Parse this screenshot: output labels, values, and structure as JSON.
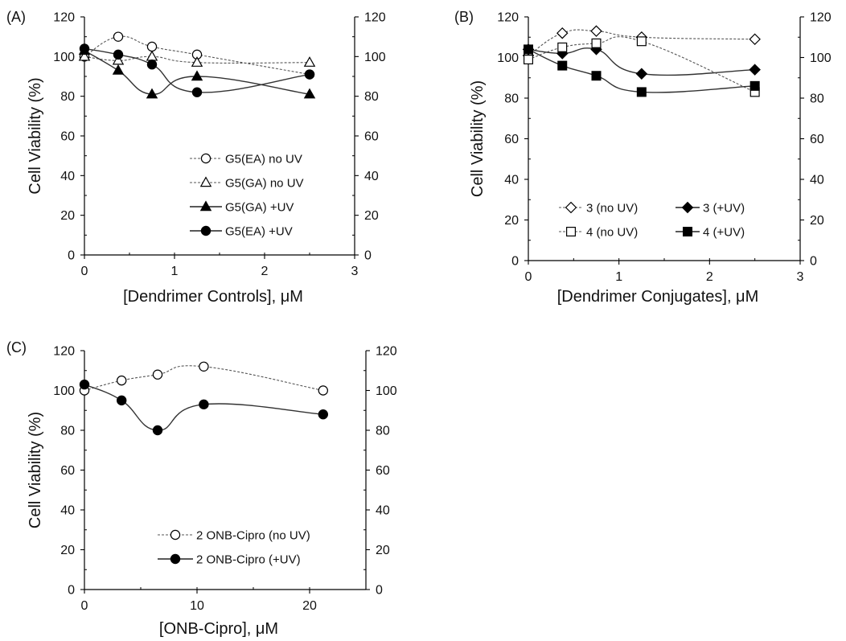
{
  "chart_data": [
    {
      "panel": "(A)",
      "type": "line",
      "xlabel": "[Dendrimer Controls], μM",
      "ylabel": "Cell Viability (%)",
      "xlim": [
        0,
        3
      ],
      "ylim": [
        0,
        120
      ],
      "xticks": [
        "0",
        "1",
        "2",
        "3"
      ],
      "yticks": [
        "0",
        "20",
        "40",
        "60",
        "80",
        "100",
        "120"
      ],
      "y2ticks": [
        "0",
        "20",
        "40",
        "60",
        "80",
        "100",
        "120"
      ],
      "legend_position": "center",
      "series": [
        {
          "name": "G5(EA) no UV",
          "marker": "circle",
          "fill": "open",
          "line": "dashed",
          "x": [
            0,
            0.375,
            0.75,
            1.25,
            2.5
          ],
          "y": [
            100,
            110,
            105,
            101,
            91
          ]
        },
        {
          "name": "G5(GA) no UV",
          "marker": "triangle",
          "fill": "open",
          "line": "dashed",
          "x": [
            0,
            0.375,
            0.75,
            1.25,
            2.5
          ],
          "y": [
            100,
            98,
            100,
            97,
            97
          ]
        },
        {
          "name": "G5(GA) +UV",
          "marker": "triangle",
          "fill": "filled",
          "line": "solid",
          "x": [
            0,
            0.375,
            0.75,
            1.25,
            2.5
          ],
          "y": [
            103,
            93,
            81,
            90,
            81
          ]
        },
        {
          "name": "G5(EA) +UV",
          "marker": "circle",
          "fill": "filled",
          "line": "solid",
          "x": [
            0,
            0.375,
            0.75,
            1.25,
            2.5
          ],
          "y": [
            104,
            101,
            96,
            82,
            91
          ]
        }
      ]
    },
    {
      "panel": "(B)",
      "type": "line",
      "xlabel": "[Dendrimer Conjugates], μM",
      "ylabel": "Cell Viability (%)",
      "xlim": [
        0,
        3
      ],
      "ylim": [
        0,
        120
      ],
      "xticks": [
        "0",
        "1",
        "2",
        "3"
      ],
      "yticks": [
        "0",
        "20",
        "40",
        "60",
        "80",
        "100",
        "120"
      ],
      "y2ticks": [
        "0",
        "20",
        "40",
        "60",
        "80",
        "100",
        "120"
      ],
      "legend_position": "bottom",
      "series": [
        {
          "name": "3 (no UV)",
          "marker": "diamond",
          "fill": "open",
          "line": "dashed",
          "x": [
            0,
            0.375,
            0.75,
            1.25,
            2.5
          ],
          "y": [
            101,
            112,
            113,
            110,
            109
          ]
        },
        {
          "name": "3 (+UV)",
          "marker": "diamond",
          "fill": "filled",
          "line": "solid",
          "x": [
            0,
            0.375,
            0.75,
            1.25,
            2.5
          ],
          "y": [
            104,
            102,
            104,
            92,
            94
          ]
        },
        {
          "name": "4 (no UV)",
          "marker": "square",
          "fill": "open",
          "line": "dashed",
          "x": [
            0,
            0.375,
            0.75,
            1.25,
            2.5
          ],
          "y": [
            99,
            105,
            107,
            108,
            83
          ]
        },
        {
          "name": "4 (+UV)",
          "marker": "square",
          "fill": "filled",
          "line": "solid",
          "x": [
            0,
            0.375,
            0.75,
            1.25,
            2.5
          ],
          "y": [
            104,
            96,
            91,
            83,
            86
          ]
        }
      ]
    },
    {
      "panel": "(C)",
      "type": "line",
      "xlabel": "[ONB-Cipro], μM",
      "ylabel": "Cell Viability (%)",
      "xlim": [
        0,
        25
      ],
      "ylim": [
        0,
        120
      ],
      "xticks": [
        "0",
        "10",
        "20"
      ],
      "xtick_values": [
        0,
        10,
        20
      ],
      "yticks": [
        "0",
        "20",
        "40",
        "60",
        "80",
        "100",
        "120"
      ],
      "y2ticks": [
        "0",
        "20",
        "40",
        "60",
        "80",
        "100",
        "120"
      ],
      "legend_position": "bottom-center",
      "series": [
        {
          "name": "2 ONB-Cipro (no UV)",
          "marker": "circle",
          "fill": "open",
          "line": "dashed",
          "x": [
            0,
            3.3,
            6.5,
            10.6,
            21.2
          ],
          "y": [
            100,
            105,
            108,
            112,
            100
          ]
        },
        {
          "name": "2 ONB-Cipro (+UV)",
          "marker": "circle",
          "fill": "filled",
          "line": "solid",
          "x": [
            0,
            3.3,
            6.5,
            10.6,
            21.2
          ],
          "y": [
            103,
            95,
            80,
            93,
            88
          ]
        }
      ]
    }
  ]
}
